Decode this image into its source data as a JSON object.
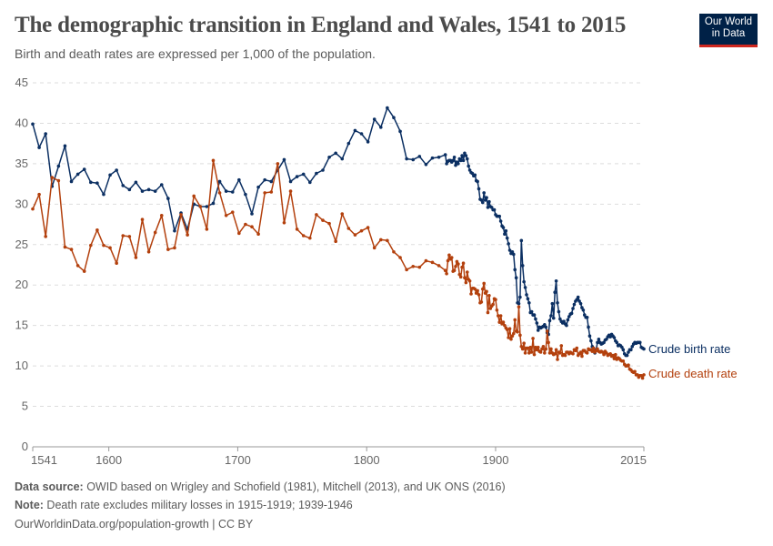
{
  "header": {
    "title": "The demographic transition in England and Wales, 1541 to 2015",
    "subtitle": "Birth and death rates are expressed per 1,000 of the population.",
    "logo_text": "Our World in Data"
  },
  "footer": {
    "source_label": "Data source:",
    "source_text": " OWID based on Wrigley and Schofield (1981), Mitchell (2013), and UK ONS (2016)",
    "note_label": "Note:",
    "note_text": " Death rate excludes military losses in 1915-1919; 1939-1946",
    "url_license": "OurWorldinData.org/population-growth | CC BY"
  },
  "colors": {
    "birth": "#0b2f62",
    "death": "#b3400d",
    "grid": "#dddddd",
    "logo_bg": "#002147",
    "logo_bar": "#ce261e"
  },
  "chart_data": {
    "type": "line",
    "title": "The demographic transition in England and Wales, 1541 to 2015",
    "xlabel": "",
    "ylabel": "",
    "xlim": [
      1541,
      2015
    ],
    "ylim": [
      0,
      45
    ],
    "y_ticks": [
      "0",
      "5",
      "10",
      "15",
      "20",
      "25",
      "30",
      "35",
      "40",
      "45"
    ],
    "x_ticks": [
      "1541",
      "1600",
      "1700",
      "1800",
      "1900",
      "2015"
    ],
    "grid": "horizontal dashed",
    "legend": "right, inline labels at line ends",
    "x": [
      1541,
      1546,
      1551,
      1556,
      1561,
      1566,
      1571,
      1576,
      1581,
      1586,
      1591,
      1596,
      1601,
      1606,
      1611,
      1616,
      1621,
      1626,
      1631,
      1636,
      1641,
      1646,
      1651,
      1656,
      1661,
      1666,
      1671,
      1676,
      1681,
      1686,
      1691,
      1696,
      1701,
      1706,
      1711,
      1716,
      1721,
      1726,
      1731,
      1736,
      1741,
      1746,
      1751,
      1756,
      1761,
      1766,
      1771,
      1776,
      1781,
      1786,
      1791,
      1796,
      1801,
      1806,
      1811,
      1816,
      1821,
      1826,
      1831,
      1836,
      1841,
      1846,
      1851,
      1856,
      1861,
      1862,
      1863,
      1864,
      1865,
      1866,
      1867,
      1868,
      1869,
      1870,
      1871,
      1872,
      1873,
      1874,
      1875,
      1876,
      1877,
      1878,
      1879,
      1880,
      1881,
      1882,
      1883,
      1884,
      1885,
      1886,
      1887,
      1888,
      1889,
      1890,
      1891,
      1892,
      1893,
      1894,
      1895,
      1896,
      1897,
      1898,
      1899,
      1900,
      1901,
      1902,
      1903,
      1904,
      1905,
      1906,
      1907,
      1908,
      1909,
      1910,
      1911,
      1912,
      1913,
      1914,
      1915,
      1916,
      1917,
      1918,
      1919,
      1920,
      1921,
      1922,
      1923,
      1924,
      1925,
      1926,
      1927,
      1928,
      1929,
      1930,
      1931,
      1932,
      1933,
      1934,
      1935,
      1936,
      1937,
      1938,
      1939,
      1940,
      1941,
      1942,
      1943,
      1944,
      1945,
      1946,
      1947,
      1948,
      1949,
      1950,
      1951,
      1952,
      1953,
      1954,
      1955,
      1956,
      1957,
      1958,
      1959,
      1960,
      1961,
      1962,
      1963,
      1964,
      1965,
      1966,
      1967,
      1968,
      1969,
      1970,
      1971,
      1972,
      1973,
      1974,
      1975,
      1976,
      1977,
      1978,
      1979,
      1980,
      1981,
      1982,
      1983,
      1984,
      1985,
      1986,
      1987,
      1988,
      1989,
      1990,
      1991,
      1992,
      1993,
      1994,
      1995,
      1996,
      1997,
      1998,
      1999,
      2000,
      2001,
      2002,
      2003,
      2004,
      2005,
      2006,
      2007,
      2008,
      2009,
      2010,
      2011,
      2012,
      2013,
      2014,
      2015
    ],
    "series": [
      {
        "name": "Crude birth rate",
        "key": "birth",
        "values": [
          39.9,
          37.0,
          38.7,
          32.2,
          34.7,
          37.2,
          32.8,
          33.7,
          34.3,
          32.7,
          32.6,
          31.2,
          33.6,
          34.2,
          32.3,
          31.8,
          32.7,
          31.6,
          31.8,
          31.6,
          32.4,
          30.7,
          26.7,
          28.9,
          26.9,
          30.0,
          29.7,
          29.7,
          30.1,
          32.8,
          31.6,
          31.5,
          33.0,
          31.2,
          28.8,
          32.1,
          33.0,
          32.8,
          34.2,
          35.5,
          32.8,
          33.4,
          33.7,
          32.7,
          33.8,
          34.2,
          35.8,
          36.3,
          35.6,
          37.5,
          39.1,
          38.7,
          37.7,
          40.5,
          39.5,
          41.9,
          40.7,
          39.0,
          35.6,
          35.5,
          35.9,
          34.9,
          35.7,
          35.8,
          36.1,
          35.0,
          35.3,
          35.4,
          35.4,
          35.2,
          35.4,
          35.8,
          34.8,
          35.2,
          35.0,
          35.6,
          35.4,
          36.0,
          35.4,
          36.3,
          36.0,
          35.6,
          34.7,
          34.2,
          33.9,
          33.8,
          33.5,
          33.6,
          32.9,
          32.8,
          31.9,
          30.6,
          30.5,
          30.2,
          31.4,
          30.5,
          30.8,
          29.6,
          30.3,
          29.7,
          29.6,
          29.3,
          29.3,
          28.7,
          28.5,
          28.5,
          28.5,
          27.9,
          27.3,
          27.1,
          26.3,
          26.7,
          25.8,
          25.1,
          24.3,
          23.9,
          24.1,
          23.8,
          21.9,
          20.9,
          17.8,
          17.7,
          18.5,
          25.5,
          22.4,
          20.4,
          19.7,
          18.8,
          18.3,
          17.8,
          16.6,
          16.7,
          16.3,
          16.3,
          15.8,
          15.3,
          14.4,
          14.8,
          14.7,
          14.8,
          14.9,
          15.1,
          14.8,
          14.1,
          13.9,
          15.6,
          16.2,
          17.7,
          15.9,
          19.1,
          20.5,
          17.8,
          16.7,
          15.8,
          15.5,
          15.3,
          15.5,
          15.2,
          15.0,
          15.7,
          16.1,
          16.4,
          16.5,
          17.1,
          17.6,
          18.0,
          18.2,
          18.5,
          18.0,
          17.7,
          17.2,
          16.9,
          16.3,
          16.0,
          16.0,
          14.8,
          13.7,
          13.1,
          12.4,
          11.9,
          11.6,
          12.0,
          12.9,
          13.3,
          12.9,
          12.7,
          12.8,
          12.9,
          13.2,
          13.3,
          13.6,
          13.8,
          13.6,
          13.9,
          13.7,
          13.5,
          13.1,
          12.9,
          12.5,
          12.6,
          12.5,
          12.3,
          12.0,
          11.5,
          11.3,
          11.3,
          11.7,
          12.0,
          12.0,
          12.4,
          12.7,
          12.9,
          12.8,
          12.9,
          12.9,
          12.9,
          12.3,
          12.2,
          12.1
        ]
      },
      {
        "name": "Crude death rate",
        "key": "death",
        "values": [
          29.4,
          31.2,
          26.0,
          33.3,
          32.9,
          24.7,
          24.4,
          22.4,
          21.7,
          24.9,
          26.8,
          24.9,
          24.6,
          22.7,
          26.1,
          26.0,
          23.4,
          28.1,
          24.1,
          26.5,
          28.6,
          24.4,
          24.6,
          28.7,
          26.2,
          31.0,
          29.7,
          26.9,
          35.4,
          31.4,
          28.6,
          29.0,
          26.4,
          27.5,
          27.2,
          26.3,
          31.4,
          31.5,
          35.0,
          27.7,
          31.6,
          26.9,
          26.1,
          25.8,
          28.7,
          28.0,
          27.6,
          25.4,
          28.8,
          27.0,
          26.2,
          26.7,
          27.1,
          24.6,
          25.6,
          25.5,
          24.1,
          23.4,
          21.9,
          22.3,
          22.2,
          23.0,
          22.8,
          22.4,
          21.8,
          21.4,
          23.0,
          23.7,
          23.2,
          23.4,
          21.7,
          21.8,
          22.3,
          22.9,
          22.6,
          21.3,
          21.0,
          22.2,
          22.7,
          20.9,
          20.3,
          21.6,
          20.7,
          20.5,
          18.9,
          19.6,
          19.6,
          19.5,
          19.0,
          19.3,
          18.8,
          17.8,
          17.9,
          19.5,
          20.2,
          19.0,
          19.2,
          16.6,
          18.7,
          17.1,
          17.4,
          17.6,
          18.3,
          18.2,
          16.9,
          16.2,
          15.4,
          16.2,
          15.2,
          15.4,
          15.0,
          14.7,
          14.5,
          13.5,
          14.6,
          13.3,
          13.7,
          14.0,
          15.7,
          14.3,
          14.2,
          17.3,
          13.8,
          12.4,
          12.1,
          12.8,
          11.6,
          12.2,
          12.2,
          11.6,
          12.3,
          11.7,
          13.4,
          11.4,
          12.3,
          12.0,
          12.3,
          11.8,
          11.7,
          12.1,
          12.4,
          11.6,
          12.1,
          14.3,
          12.9,
          11.6,
          12.1,
          11.6,
          11.4,
          11.5,
          12.0,
          10.8,
          11.7,
          11.6,
          12.5,
          11.3,
          11.4,
          11.3,
          11.7,
          11.7,
          11.5,
          11.7,
          11.6,
          11.5,
          12.0,
          11.9,
          12.2,
          11.3,
          11.5,
          11.7,
          11.2,
          11.9,
          11.9,
          11.7,
          11.6,
          12.1,
          12.0,
          12.0,
          11.8,
          12.2,
          11.7,
          11.9,
          12.1,
          11.8,
          11.7,
          11.8,
          11.7,
          11.4,
          11.8,
          11.6,
          11.3,
          11.4,
          11.5,
          11.2,
          11.3,
          10.9,
          11.4,
          10.8,
          11.0,
          10.9,
          10.7,
          10.6,
          10.6,
          10.2,
          10.0,
          10.0,
          10.1,
          9.6,
          9.5,
          9.3,
          9.2,
          9.3,
          8.9,
          8.9,
          8.6,
          8.8,
          8.8,
          8.5,
          8.9
        ]
      }
    ]
  }
}
